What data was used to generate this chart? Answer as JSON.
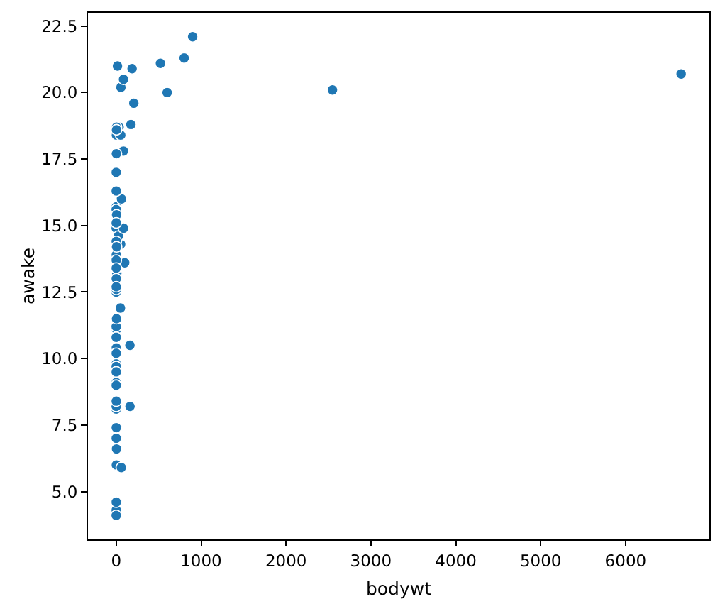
{
  "chart_data": {
    "type": "scatter",
    "xlabel": "bodywt",
    "ylabel": "awake",
    "x": [
      50,
      0.48,
      0.019,
      600,
      0.045,
      14.8,
      33.5,
      1,
      0.005,
      3.5,
      2.95,
      1.7,
      2547,
      0.023,
      521,
      187,
      0.77,
      0.071,
      3.3,
      900,
      800,
      85,
      2.625,
      62,
      6654,
      0.37,
      6.8,
      0.053,
      0.12,
      0.01,
      0.266,
      0.21,
      2.5,
      55.5,
      52.2,
      162.6,
      100,
      161.5,
      25.2,
      0.55,
      1.1,
      0.021,
      1.62,
      86,
      53.18,
      1.1,
      60,
      3.6,
      0.32,
      0.743,
      0.075,
      0.148,
      0.122,
      0.92,
      0.101,
      0.205,
      0.048,
      86.25,
      4.5,
      0.112,
      207.5,
      0.9,
      0.104,
      173.3,
      2,
      3.38,
      4.23
    ],
    "values": [
      11.9,
      7,
      9.1,
      20,
      17,
      21,
      18.7,
      15.7,
      14.9,
      6.6,
      18.7,
      6,
      20.1,
      4.3,
      21.1,
      20.9,
      13.9,
      9,
      11.1,
      22.1,
      21.3,
      17.8,
      18.4,
      16,
      20.7,
      4.6,
      13.2,
      9.8,
      9.7,
      4.1,
      9.5,
      16.3,
      15.6,
      20.2,
      14.3,
      8.2,
      13.6,
      10.5,
      14.6,
      13.7,
      13,
      12.5,
      10.4,
      20.5,
      18.4,
      12.6,
      5.9,
      18.6,
      10.8,
      14.4,
      15.6,
      12.7,
      13.4,
      7.4,
      10.2,
      8.1,
      11.2,
      14.9,
      15.4,
      8.2,
      19.6,
      8.4,
      15.1,
      18.8,
      17.7,
      11.5,
      14.2
    ],
    "color": "#1f77b4",
    "marker": "circle",
    "grid": false,
    "xlim": [
      -332.7,
      6986.7
    ],
    "xticks": [
      0,
      1000,
      2000,
      3000,
      4000,
      5000,
      6000
    ],
    "ylim": [
      3.2,
      23
    ],
    "yticks": [
      {
        "value": 5,
        "label": "5.0"
      },
      {
        "value": 7.5,
        "label": "7.5"
      },
      {
        "value": 10,
        "label": "10.0"
      },
      {
        "value": 12.5,
        "label": "12.5"
      },
      {
        "value": 15,
        "label": "15.0"
      },
      {
        "value": 17.5,
        "label": "17.5"
      },
      {
        "value": 20,
        "label": "20.0"
      },
      {
        "value": 22.5,
        "label": "22.5"
      }
    ]
  }
}
